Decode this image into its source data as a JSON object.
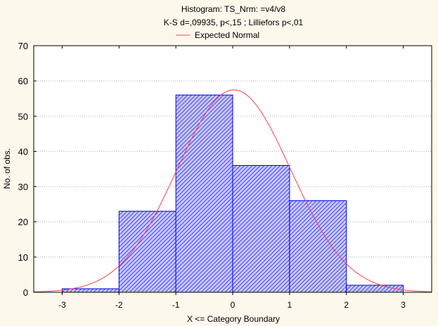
{
  "chart_data": {
    "type": "bar",
    "title": "Histogram: TS_Nrm: =v4/v8",
    "subtitle": "K-S d=,09935, p<,15 ; Lilliefors p<,01",
    "legend": [
      {
        "name": "Expected Normal",
        "color": "#ff4040"
      }
    ],
    "legend_placement": "top-center",
    "xlabel": "X <= Category Boundary",
    "ylabel": "No. of obs.",
    "xlim": [
      -3.5,
      3.5
    ],
    "ylim": [
      0,
      70
    ],
    "grid": true,
    "xticks": [
      -3,
      -2,
      -1,
      0,
      1,
      2,
      3
    ],
    "yticks": [
      0,
      10,
      20,
      30,
      40,
      50,
      60,
      70
    ],
    "bins": [
      [
        -3,
        -2
      ],
      [
        -2,
        -1
      ],
      [
        -1,
        0
      ],
      [
        0,
        1
      ],
      [
        1,
        2
      ],
      [
        2,
        3
      ]
    ],
    "values": [
      1,
      23,
      56,
      36,
      26,
      2
    ],
    "bar_color": "#0000ff",
    "normal_curve": {
      "n": 144,
      "mean": 0.02,
      "sd": 1.0,
      "bin_width": 1
    }
  }
}
